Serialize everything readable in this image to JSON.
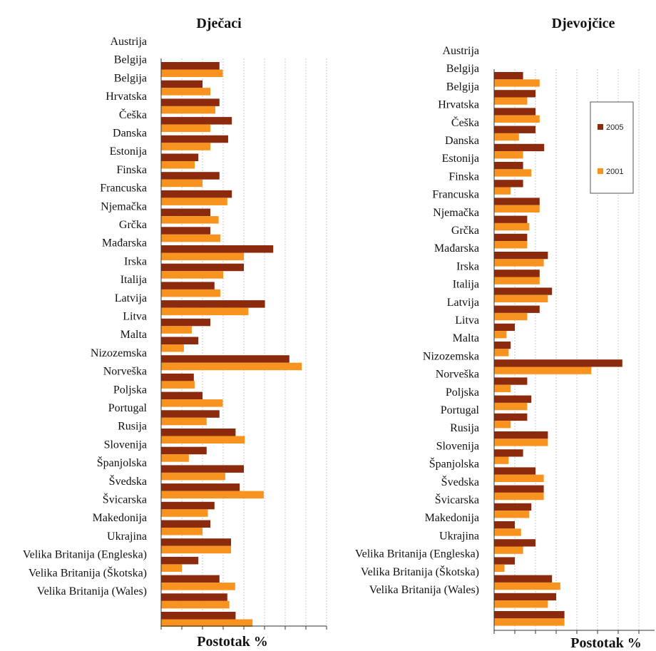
{
  "colors": {
    "s2005": "#8B2A0C",
    "s2001": "#F7931E",
    "grid": "#c8c8c8",
    "axis": "#333333"
  },
  "chart_data": [
    {
      "type": "bar",
      "orientation": "horizontal",
      "title": "Dječaci",
      "xlabel": "Postotak %",
      "categories": [
        "Austrija",
        "Belgija",
        "Belgija",
        "Hrvatska",
        "Češka",
        "Danska",
        "Estonija",
        "Finska",
        "Francuska",
        "Njemačka",
        "Grčka",
        "Mađarska",
        "Irska",
        "Italija",
        "Latvija",
        "Litva",
        "Malta",
        "Nizozemska",
        "Norveška",
        "Poljska",
        "Portugal",
        "Rusija",
        "Slovenija",
        "Španjolska",
        "Švedska",
        "Švicarska",
        "Makedonija",
        "Ukrajina",
        "Velika Britanija (Engleska)",
        "Velika Britanija (Škotska)",
        "Velika Britanija (Wales)"
      ],
      "series": [
        {
          "name": "2005",
          "values": [
            14.1,
            10.0,
            14.1,
            17.1,
            16.2,
            9.0,
            14.1,
            17.1,
            11.9,
            11.9,
            27.1,
            20.0,
            12.9,
            25.1,
            11.9,
            9.0,
            31.0,
            7.9,
            10.0,
            14.1,
            18.0,
            11.0,
            20.0,
            19.0,
            12.9,
            11.9,
            16.9,
            9.0,
            14.1,
            16.0,
            18.0
          ]
        },
        {
          "name": "2001",
          "values": [
            14.9,
            11.9,
            13.1,
            11.9,
            11.9,
            8.1,
            10.0,
            16.0,
            13.9,
            14.3,
            20.0,
            15.0,
            14.3,
            21.1,
            7.4,
            5.5,
            34.0,
            8.1,
            14.9,
            11.0,
            20.2,
            6.7,
            15.5,
            24.8,
            11.3,
            10.0,
            16.9,
            5.0,
            17.9,
            16.5,
            22.1
          ]
        }
      ]
    },
    {
      "type": "bar",
      "orientation": "horizontal",
      "title": "Djevojčice",
      "xlabel": "Postotak %",
      "legend": [
        {
          "label": "2005"
        },
        {
          "label": "2001"
        }
      ],
      "legend_position": "top-right",
      "categories": [
        "Austrija",
        "Belgija",
        "Belgija",
        "Hrvatska",
        "Češka",
        "Danska",
        "Estonija",
        "Finska",
        "Francuska",
        "Njemačka",
        "Grčka",
        "Mađarska",
        "Irska",
        "Italija",
        "Latvija",
        "Litva",
        "Malta",
        "Nizozemska",
        "Norveška",
        "Poljska",
        "Portugal",
        "Rusija",
        "Slovenija",
        "Španjolska",
        "Švedska",
        "Švicarska",
        "Makedonija",
        "Ukrajina",
        "Velika Britanija (Engleska)",
        "Velika Britanija (Škotska)",
        "Velika Britanija (Wales)"
      ],
      "series": [
        {
          "name": "2005",
          "values": [
            7.0,
            10.0,
            10.0,
            10.0,
            12.1,
            7.0,
            7.0,
            11.0,
            8.0,
            8.0,
            13.0,
            11.0,
            14.0,
            11.0,
            5.0,
            4.0,
            31.0,
            8.0,
            9.0,
            8.0,
            13.0,
            7.0,
            10.0,
            12.0,
            9.0,
            5.0,
            10.0,
            5.0,
            14.0,
            15.0,
            17.0
          ]
        },
        {
          "name": "2001",
          "values": [
            11.0,
            8.0,
            11.0,
            6.0,
            7.0,
            9.0,
            4.0,
            11.0,
            8.5,
            8.0,
            12.0,
            11.0,
            13.0,
            8.0,
            3.0,
            3.5,
            23.5,
            4.0,
            8.0,
            4.0,
            13.0,
            3.5,
            12.0,
            12.0,
            8.5,
            6.5,
            7.0,
            2.5,
            16.0,
            13.0,
            17.0
          ]
        }
      ]
    }
  ]
}
